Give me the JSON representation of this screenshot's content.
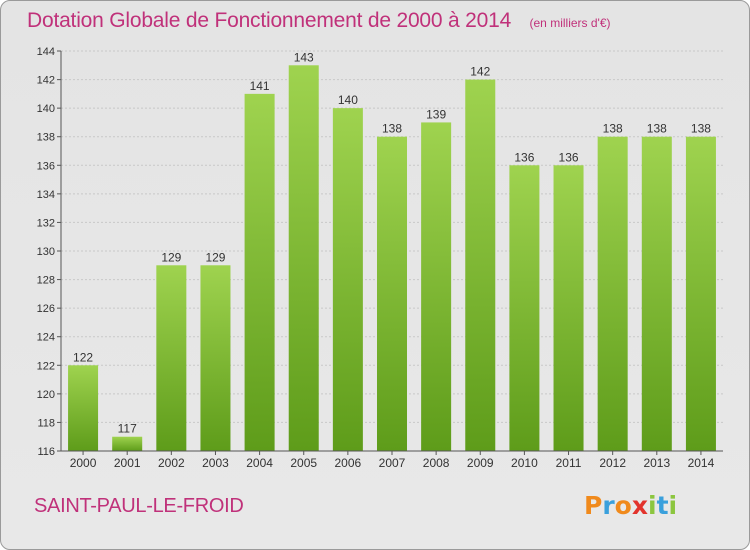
{
  "title": "Dotation Globale de Fonctionnement de 2000 à 2014",
  "subtitle": "(en milliers d'€)",
  "commune": "SAINT-PAUL-LE-FROID",
  "logo_text": "Proxiti",
  "colors": {
    "title": "#c0317a",
    "bar_light": "#9fd34f",
    "bar_dark": "#5e9c1a",
    "background": "#e6e6e6",
    "grid": "#c8c8c8"
  },
  "chart_data": {
    "type": "bar",
    "title": "Dotation Globale de Fonctionnement de 2000 à 2014",
    "subtitle": "(en milliers d'€)",
    "categories": [
      "2000",
      "2001",
      "2002",
      "2003",
      "2004",
      "2005",
      "2006",
      "2007",
      "2008",
      "2009",
      "2010",
      "2011",
      "2012",
      "2013",
      "2014"
    ],
    "values": [
      122,
      117,
      129,
      129,
      141,
      143,
      140,
      138,
      139,
      142,
      136,
      136,
      138,
      138,
      138
    ],
    "ylim": [
      116,
      144
    ],
    "yticks": [
      116,
      118,
      120,
      122,
      124,
      126,
      128,
      130,
      132,
      134,
      136,
      138,
      140,
      142,
      144
    ],
    "xlabel": "",
    "ylabel": "",
    "grid": true,
    "data_labels": true
  }
}
